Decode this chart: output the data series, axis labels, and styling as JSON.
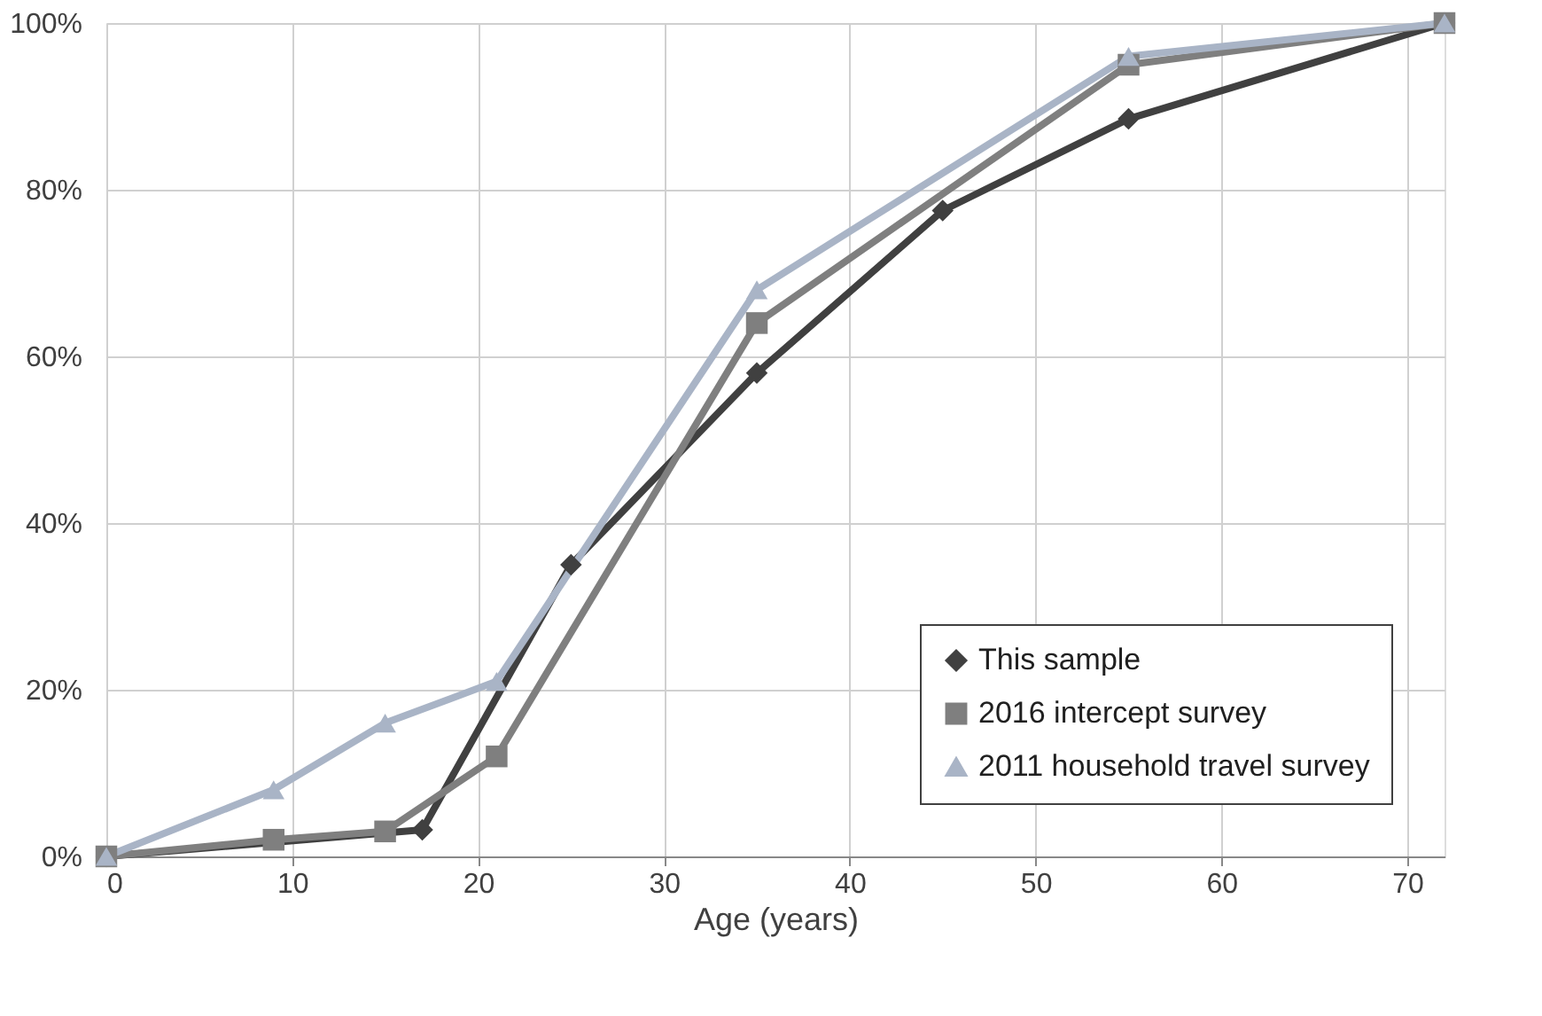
{
  "chart_data": {
    "type": "line",
    "xlabel": "Age (years)",
    "xlim": [
      0,
      72
    ],
    "xticks": [
      0,
      10,
      20,
      30,
      40,
      50,
      60,
      70
    ],
    "ylim": [
      0,
      100
    ],
    "yticks": [
      {
        "value": 0,
        "label": "0%"
      },
      {
        "value": 20,
        "label": "20%"
      },
      {
        "value": 40,
        "label": "40%"
      },
      {
        "value": 60,
        "label": "60%"
      },
      {
        "value": 80,
        "label": "80%"
      },
      {
        "value": 100,
        "label": "100%"
      }
    ],
    "grid": true,
    "legend": "bottom right",
    "line_style": "solid",
    "series": [
      {
        "name": "This sample",
        "color": "#404040",
        "marker": "diamond",
        "x": [
          0,
          17,
          25,
          35,
          45,
          55,
          72
        ],
        "values": [
          0,
          3.2,
          35,
          58,
          77.5,
          88.5,
          100
        ]
      },
      {
        "name": "2016 intercept survey",
        "color": "#7f7f7f",
        "marker": "square",
        "x": [
          0,
          9,
          15,
          21,
          35,
          55,
          72
        ],
        "values": [
          0,
          2,
          3,
          12,
          64,
          95,
          100
        ]
      },
      {
        "name": "2011 household travel survey",
        "color": "#a9b4c6",
        "marker": "triangle",
        "x": [
          0,
          9,
          15,
          21,
          35,
          55,
          72
        ],
        "values": [
          0,
          8,
          16,
          21,
          68,
          96,
          100
        ]
      }
    ]
  }
}
